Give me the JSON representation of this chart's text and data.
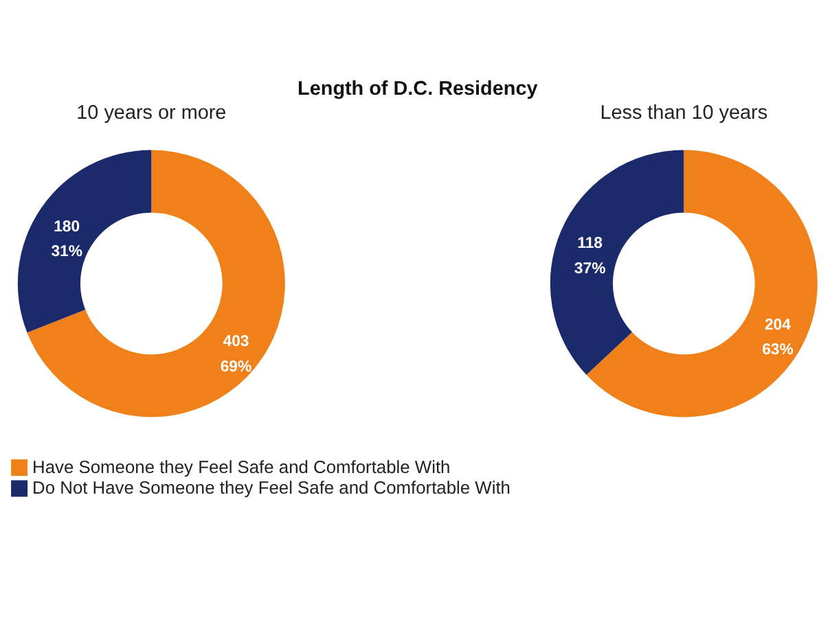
{
  "chart_data": [
    {
      "type": "donut",
      "title": "Length of D.C. Residency",
      "subtitle": "10 years or more",
      "categories": [
        "Have Someone they Feel Safe and Comfortable With",
        "Do Not Have Someone they Feel Safe and Comfortable With"
      ],
      "values": [
        69,
        31
      ],
      "colors": [
        "#f0801a",
        "#1b2a6b"
      ],
      "value_labels": [
        "403\n69%",
        "180\n31%"
      ],
      "legend": "bottom"
    },
    {
      "type": "donut",
      "subtitle": "Less than 10 years",
      "categories": [
        null,
        null
      ],
      "values": [
        63,
        37
      ],
      "colors": [
        "#f0801a",
        "#1b2a6b"
      ],
      "value_labels": [
        "204\n63%",
        "118\n37%"
      ]
    }
  ]
}
